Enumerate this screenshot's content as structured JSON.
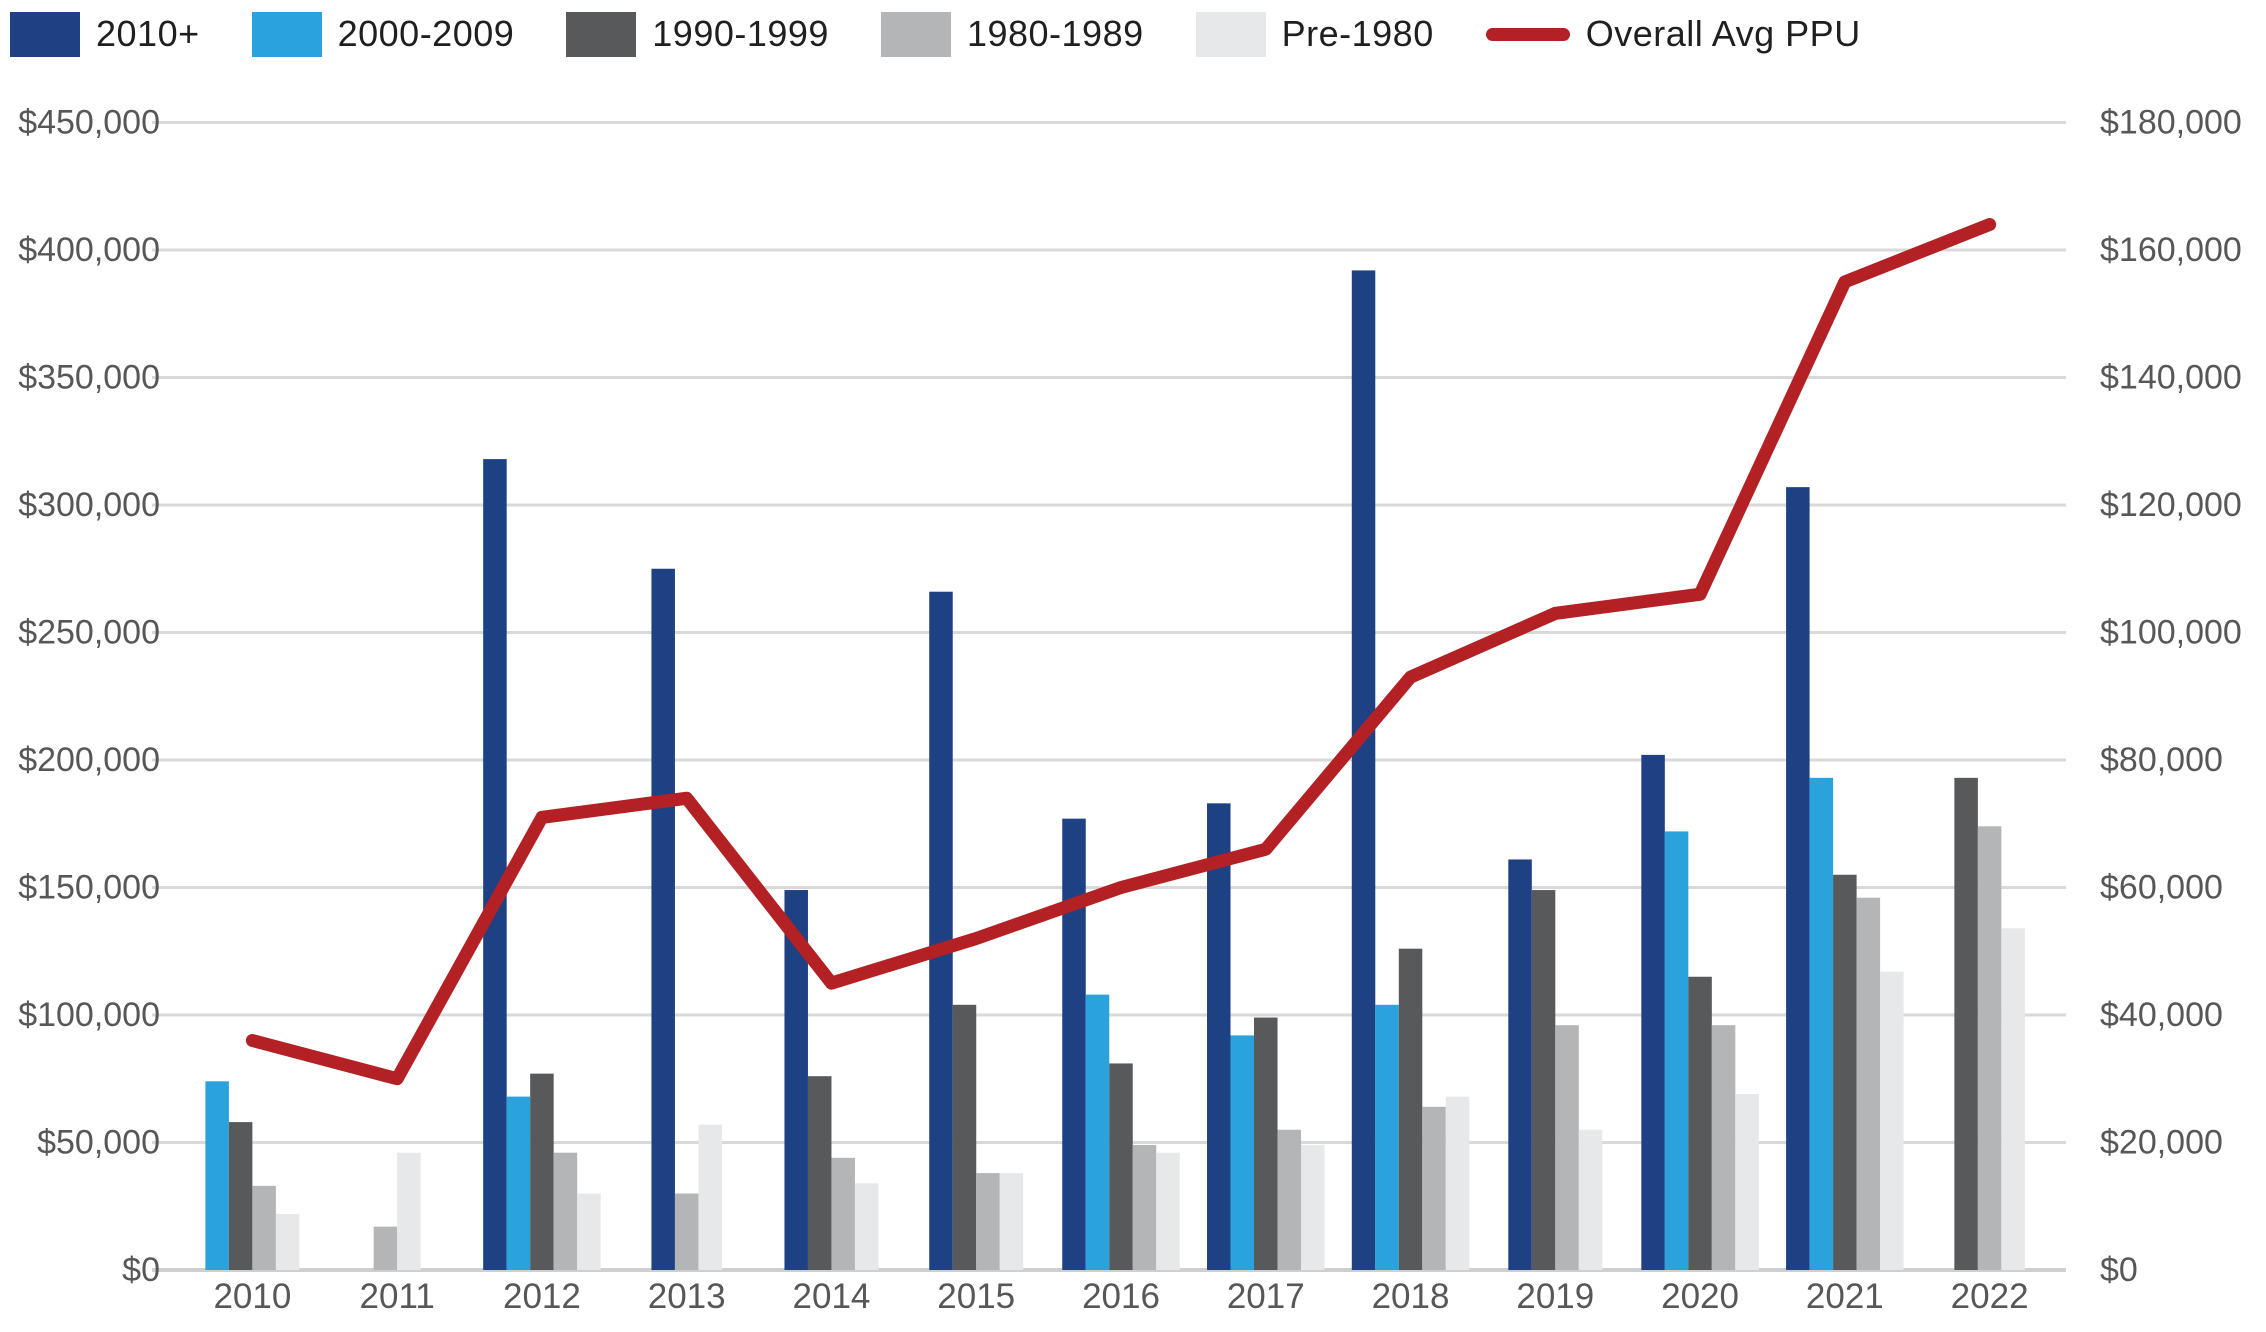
{
  "legend": {
    "items": [
      {
        "label": "2010+",
        "color": "#1e4184",
        "type": "swatch"
      },
      {
        "label": "2000-2009",
        "color": "#2aa2dc",
        "type": "swatch"
      },
      {
        "label": "1990-1999",
        "color": "#58595b",
        "type": "swatch"
      },
      {
        "label": "1980-1989",
        "color": "#b4b5b7",
        "type": "swatch"
      },
      {
        "label": "Pre-1980",
        "color": "#e7e8e9",
        "type": "swatch"
      },
      {
        "label": "Overall Avg PPU",
        "color": "#b42125",
        "type": "line"
      }
    ]
  },
  "chart_data": {
    "type": "bar",
    "subtype": "grouped-bars-with-line-dual-axis",
    "title": "",
    "categories": [
      "2010",
      "2011",
      "2012",
      "2013",
      "2014",
      "2015",
      "2016",
      "2017",
      "2018",
      "2019",
      "2020",
      "2021",
      "2022"
    ],
    "series": [
      {
        "name": "2010+",
        "color": "#1e4184",
        "axis": "left",
        "values": [
          null,
          null,
          318000,
          275000,
          149000,
          266000,
          177000,
          183000,
          392000,
          161000,
          202000,
          307000,
          null
        ]
      },
      {
        "name": "2000-2009",
        "color": "#2aa2dc",
        "axis": "left",
        "values": [
          74000,
          null,
          68000,
          null,
          null,
          null,
          108000,
          92000,
          104000,
          null,
          172000,
          193000,
          null
        ]
      },
      {
        "name": "1990-1999",
        "color": "#58595b",
        "axis": "left",
        "values": [
          58000,
          null,
          77000,
          null,
          76000,
          104000,
          81000,
          99000,
          126000,
          149000,
          115000,
          155000,
          193000
        ]
      },
      {
        "name": "1980-1989",
        "color": "#b4b5b7",
        "axis": "left",
        "values": [
          33000,
          17000,
          46000,
          30000,
          44000,
          38000,
          49000,
          55000,
          64000,
          96000,
          96000,
          146000,
          174000
        ]
      },
      {
        "name": "Pre-1980",
        "color": "#e7e8e9",
        "axis": "left",
        "values": [
          22000,
          46000,
          30000,
          57000,
          34000,
          38000,
          46000,
          49000,
          68000,
          55000,
          69000,
          117000,
          134000
        ]
      }
    ],
    "line_series": {
      "name": "Overall Avg PPU",
      "color": "#b42125",
      "axis": "right",
      "values": [
        36000,
        30000,
        71000,
        74000,
        45000,
        52000,
        60000,
        66000,
        93000,
        103000,
        106000,
        155000,
        164000
      ]
    },
    "left_axis": {
      "min": 0,
      "max": 450000,
      "step": 50000,
      "tick_labels": [
        "$0",
        "$50,000",
        "$100,000",
        "$150,000",
        "$200,000",
        "$250,000",
        "$300,000",
        "$350,000",
        "$400,000",
        "$450,000"
      ]
    },
    "right_axis": {
      "min": 0,
      "max": 180000,
      "step": 20000,
      "tick_labels": [
        "$0",
        "$20,000",
        "$40,000",
        "$60,000",
        "$80,000",
        "$100,000",
        "$120,000",
        "$140,000",
        "$160,000",
        "$180,000"
      ]
    },
    "grid": true,
    "legend_position": "top-left",
    "gridline_color": "#d9d9d9",
    "axis_line_color": "#cfcfcf"
  }
}
